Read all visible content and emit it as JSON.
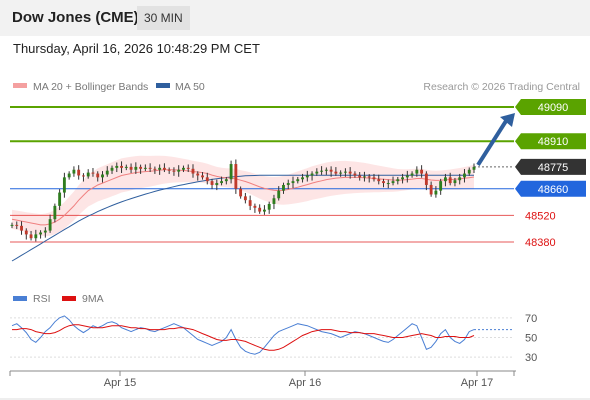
{
  "header": {
    "instrument": "Dow Jones (CME)",
    "interval_button": "30 MIN"
  },
  "datetime": "Thursday, April 16, 2026 10:48:29 PM CET",
  "legend": {
    "ma20_label": "MA 20 + Bollinger Bands",
    "ma50_label": "MA 50",
    "credit": "Research © 2026 Trading Central",
    "rsi_label": "RSI",
    "rsi_ma_label": "9MA"
  },
  "colors": {
    "resistance": "#5aa300",
    "pivot": "#2266dd",
    "support": "#dd1111",
    "current": "#333333",
    "arrow": "#2f5f9e",
    "bollinger_fill": "#fde0e0",
    "ma20": "#f08080",
    "ma50": "#2f5f9e",
    "candle_up": "#2e7d1e",
    "candle_down": "#c0392b",
    "rsi": "#4a7fd4",
    "rsi_ma": "#dd1111"
  },
  "chart_data": {
    "type": "candlestick",
    "y_range": [
      48260,
      49120
    ],
    "x_labels": [
      "Apr 15",
      "Apr 16",
      "Apr 17"
    ],
    "price_levels": [
      {
        "value": 49090,
        "label": "49090",
        "kind": "resistance"
      },
      {
        "value": 48910,
        "label": "48910",
        "kind": "resistance"
      },
      {
        "value": 48775,
        "label": "48775",
        "kind": "current"
      },
      {
        "value": 48660,
        "label": "48660",
        "kind": "pivot"
      },
      {
        "value": 48520,
        "label": "48520",
        "kind": "support"
      },
      {
        "value": 48380,
        "label": "48380",
        "kind": "support"
      }
    ],
    "target": 49090,
    "closes": [
      48470,
      48465,
      48440,
      48420,
      48400,
      48420,
      48430,
      48440,
      48500,
      48570,
      48640,
      48720,
      48740,
      48760,
      48730,
      48725,
      48745,
      48740,
      48720,
      48735,
      48755,
      48770,
      48780,
      48770,
      48775,
      48760,
      48775,
      48765,
      48770,
      48765,
      48760,
      48770,
      48760,
      48755,
      48750,
      48760,
      48770,
      48765,
      48740,
      48730,
      48720,
      48700,
      48680,
      48690,
      48700,
      48710,
      48790,
      48660,
      48620,
      48600,
      48570,
      48560,
      48540,
      48550,
      48580,
      48610,
      48650,
      48680,
      48690,
      48700,
      48710,
      48720,
      48730,
      48740,
      48750,
      48755,
      48760,
      48750,
      48740,
      48745,
      48750,
      48740,
      48730,
      48720,
      48725,
      48720,
      48710,
      48700,
      48690,
      48690,
      48700,
      48710,
      48720,
      48730,
      48740,
      48760,
      48740,
      48680,
      48630,
      48650,
      48700,
      48720,
      48690,
      48705,
      48720,
      48740,
      48760,
      48775
    ],
    "ma20": [
      48500,
      48495,
      48490,
      48485,
      48480,
      48475,
      48470,
      48470,
      48475,
      48485,
      48500,
      48520,
      48545,
      48570,
      48600,
      48625,
      48650,
      48665,
      48680,
      48690,
      48700,
      48710,
      48720,
      48730,
      48735,
      48740,
      48745,
      48748,
      48750,
      48752,
      48755,
      48758,
      48760,
      48760,
      48760,
      48758,
      48756,
      48754,
      48750,
      48748,
      48745,
      48740,
      48732,
      48725,
      48720,
      48718,
      48716,
      48712,
      48705,
      48698,
      48690,
      48680,
      48670,
      48662,
      48656,
      48652,
      48650,
      48652,
      48656,
      48662,
      48668,
      48675,
      48682,
      48690,
      48696,
      48702,
      48708,
      48712,
      48716,
      48718,
      48720,
      48720,
      48720,
      48719,
      48718,
      48716,
      48714,
      48712,
      48710,
      48708,
      48706,
      48705,
      48706,
      48708,
      48711,
      48714,
      48714,
      48710,
      48706,
      48704,
      48705,
      48707,
      48708,
      48710,
      48712,
      48715,
      48718,
      48722
    ],
    "ma50": [
      48280,
      48295,
      48310,
      48325,
      48340,
      48355,
      48370,
      48385,
      48400,
      48415,
      48430,
      48445,
      48460,
      48475,
      48490,
      48503,
      48516,
      48528,
      48540,
      48551,
      48562,
      48572,
      48582,
      48591,
      48600,
      48608,
      48616,
      48624,
      48632,
      48639,
      48646,
      48653,
      48659,
      48665,
      48671,
      48677,
      48682,
      48687,
      48692,
      48697,
      48701,
      48705,
      48709,
      48713,
      48716,
      48719,
      48722,
      48724,
      48726,
      48728,
      48729,
      48730,
      48731,
      48731,
      48731,
      48731,
      48731,
      48731,
      48731,
      48731,
      48731,
      48731,
      48731,
      48731,
      48731,
      48731,
      48731,
      48731,
      48731,
      48731,
      48731,
      48731,
      48731,
      48731,
      48731,
      48731,
      48731,
      48731,
      48731,
      48731,
      48731,
      48731,
      48731,
      48731,
      48731,
      48731,
      48731,
      48731,
      48731,
      48731,
      48731,
      48731,
      48731,
      48731,
      48731,
      48731,
      48731,
      48731
    ],
    "rsi": {
      "y_range": [
        20,
        80
      ],
      "ticks": [
        {
          "value": 70,
          "label": "70"
        },
        {
          "value": 50,
          "label": "50"
        },
        {
          "value": 30,
          "label": "30"
        }
      ],
      "rsi_values": [
        62,
        64,
        60,
        55,
        48,
        45,
        50,
        56,
        60,
        66,
        70,
        72,
        68,
        62,
        58,
        55,
        58,
        62,
        60,
        62,
        65,
        66,
        64,
        60,
        58,
        56,
        58,
        60,
        59,
        57,
        56,
        58,
        60,
        62,
        64,
        62,
        60,
        56,
        52,
        48,
        46,
        44,
        42,
        44,
        46,
        50,
        58,
        48,
        40,
        36,
        34,
        33,
        35,
        40,
        46,
        52,
        56,
        58,
        60,
        62,
        64,
        63,
        62,
        60,
        58,
        56,
        55,
        54,
        52,
        50,
        52,
        54,
        56,
        55,
        54,
        52,
        50,
        48,
        46,
        45,
        48,
        52,
        56,
        60,
        64,
        62,
        50,
        38,
        40,
        46,
        54,
        58,
        50,
        46,
        44,
        48,
        56,
        58
      ],
      "ma_values": [
        58,
        58,
        59,
        59,
        58,
        56,
        55,
        54,
        54,
        55,
        57,
        60,
        62,
        63,
        63,
        62,
        61,
        60,
        60,
        60,
        61,
        62,
        62,
        62,
        61,
        60,
        60,
        59,
        59,
        58,
        58,
        58,
        58,
        59,
        59,
        60,
        60,
        59,
        58,
        56,
        54,
        52,
        50,
        48,
        47,
        47,
        48,
        48,
        47,
        46,
        44,
        42,
        40,
        38,
        37,
        37,
        38,
        40,
        43,
        46,
        49,
        52,
        54,
        56,
        57,
        58,
        58,
        58,
        57,
        56,
        56,
        55,
        55,
        55,
        54,
        54,
        54,
        53,
        52,
        51,
        50,
        50,
        50,
        51,
        52,
        53,
        54,
        53,
        52,
        50,
        50,
        51,
        51,
        51,
        50,
        50,
        50,
        52
      ]
    }
  }
}
